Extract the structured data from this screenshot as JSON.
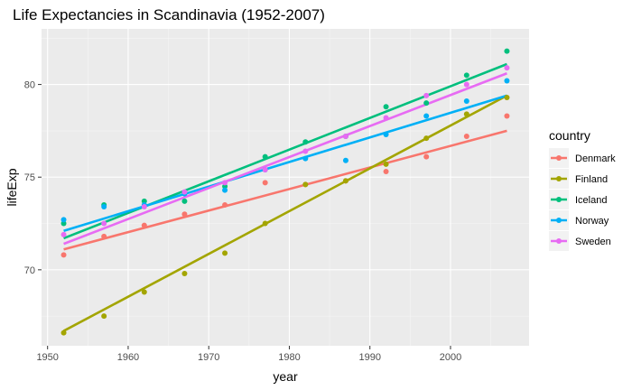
{
  "chart_data": {
    "type": "scatter",
    "title": "Life Expectancies in Scandinavia (1952-2007)",
    "xlabel": "year",
    "ylabel": "lifeExp",
    "xlim": [
      1949.25,
      2009.75
    ],
    "ylim": [
      65.9,
      83.0
    ],
    "x_ticks": [
      1950,
      1960,
      1970,
      1980,
      1990,
      2000
    ],
    "y_ticks": [
      70,
      75,
      80
    ],
    "grid": true,
    "legend": {
      "title": "country",
      "position": "right"
    },
    "x": [
      1952,
      1957,
      1962,
      1967,
      1972,
      1977,
      1982,
      1987,
      1992,
      1997,
      2002,
      2007
    ],
    "series": [
      {
        "name": "Denmark",
        "color": "#F8766D",
        "values": [
          70.8,
          71.8,
          72.4,
          73.0,
          73.5,
          74.7,
          74.6,
          74.8,
          75.3,
          76.1,
          77.2,
          78.3
        ],
        "fit": [
          71.1,
          77.5
        ]
      },
      {
        "name": "Finland",
        "color": "#A3A500",
        "values": [
          66.6,
          67.5,
          68.8,
          69.8,
          70.9,
          72.5,
          74.6,
          74.8,
          75.7,
          77.1,
          78.4,
          79.3
        ],
        "fit": [
          66.7,
          79.4
        ]
      },
      {
        "name": "Iceland",
        "color": "#00BF7D",
        "values": [
          72.5,
          73.5,
          73.7,
          73.7,
          74.5,
          76.1,
          76.9,
          77.2,
          78.8,
          79.0,
          80.5,
          81.8
        ],
        "fit": [
          71.7,
          81.1
        ]
      },
      {
        "name": "Norway",
        "color": "#00B0F6",
        "values": [
          72.7,
          73.4,
          73.5,
          74.1,
          74.3,
          75.4,
          76.0,
          75.9,
          77.3,
          78.3,
          79.1,
          80.2
        ],
        "fit": [
          72.1,
          79.4
        ]
      },
      {
        "name": "Sweden",
        "color": "#E76BF3",
        "values": [
          71.9,
          72.5,
          73.4,
          74.2,
          74.7,
          75.4,
          76.4,
          77.2,
          78.2,
          79.4,
          80.0,
          80.9
        ],
        "fit": [
          71.4,
          80.6
        ]
      }
    ]
  }
}
